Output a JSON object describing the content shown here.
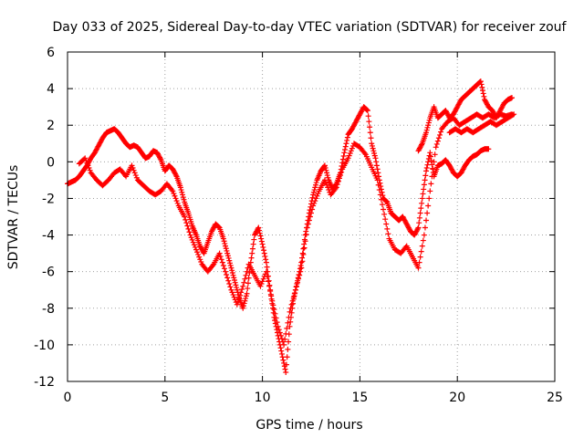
{
  "chart_data": {
    "type": "scatter",
    "title": "Day 033 of 2025, Sidereal Day-to-day VTEC variation (SDTVAR) for receiver zouf",
    "xlabel": "GPS time / hours",
    "ylabel": "SDTVAR / TECUs",
    "xlim": [
      0,
      25
    ],
    "ylim": [
      -12,
      6
    ],
    "xticks": [
      "0",
      "5",
      "10",
      "15",
      "20",
      "25"
    ],
    "yticks": [
      "6",
      "4",
      "2",
      "0",
      "-2",
      "-4",
      "-6",
      "-8",
      "-10",
      "-12"
    ],
    "grid": true,
    "marker": "+",
    "color": "#ff0000",
    "series": [
      {
        "values_desc": "primary",
        "points": [
          [
            0.0,
            -1.2
          ],
          [
            0.2,
            -1.1
          ],
          [
            0.4,
            -1.0
          ],
          [
            0.6,
            -0.8
          ],
          [
            0.8,
            -0.5
          ],
          [
            1.0,
            -0.2
          ],
          [
            1.2,
            0.2
          ],
          [
            1.4,
            0.5
          ],
          [
            1.6,
            0.9
          ],
          [
            1.8,
            1.3
          ],
          [
            2.0,
            1.6
          ],
          [
            2.2,
            1.7
          ],
          [
            2.4,
            1.8
          ],
          [
            2.6,
            1.6
          ],
          [
            2.8,
            1.3
          ],
          [
            3.0,
            1.0
          ],
          [
            3.2,
            0.8
          ],
          [
            3.4,
            0.9
          ],
          [
            3.6,
            0.8
          ],
          [
            3.8,
            0.5
          ],
          [
            4.0,
            0.2
          ],
          [
            4.2,
            0.3
          ],
          [
            4.4,
            0.6
          ],
          [
            4.6,
            0.5
          ],
          [
            4.8,
            0.1
          ],
          [
            5.0,
            -0.5
          ],
          [
            5.2,
            -0.2
          ],
          [
            5.4,
            -0.4
          ],
          [
            5.6,
            -0.8
          ],
          [
            5.8,
            -1.4
          ],
          [
            6.0,
            -2.2
          ],
          [
            6.2,
            -2.8
          ],
          [
            6.4,
            -3.5
          ],
          [
            6.6,
            -4.0
          ],
          [
            6.8,
            -4.6
          ],
          [
            7.0,
            -5.0
          ],
          [
            7.2,
            -4.4
          ],
          [
            7.4,
            -3.8
          ],
          [
            7.6,
            -3.4
          ],
          [
            7.8,
            -3.6
          ],
          [
            8.0,
            -4.2
          ],
          [
            8.2,
            -5.0
          ],
          [
            8.4,
            -5.8
          ],
          [
            8.6,
            -6.6
          ],
          [
            8.8,
            -7.4
          ],
          [
            9.0,
            -8.0
          ],
          [
            9.2,
            -7.2
          ],
          [
            9.4,
            -5.5
          ],
          [
            9.6,
            -4.0
          ],
          [
            9.8,
            -3.6
          ],
          [
            10.0,
            -4.5
          ],
          [
            10.2,
            -5.5
          ],
          [
            10.4,
            -7.0
          ],
          [
            10.6,
            -8.5
          ],
          [
            10.8,
            -9.5
          ],
          [
            11.0,
            -10.5
          ],
          [
            11.2,
            -11.5
          ],
          [
            11.4,
            -9.0
          ],
          [
            11.6,
            -7.5
          ],
          [
            11.8,
            -6.5
          ],
          [
            12.0,
            -5.5
          ],
          [
            12.2,
            -4.0
          ],
          [
            12.4,
            -2.8
          ],
          [
            12.6,
            -1.8
          ],
          [
            12.8,
            -1.0
          ],
          [
            13.0,
            -0.5
          ],
          [
            13.2,
            -0.2
          ],
          [
            13.4,
            -1.0
          ],
          [
            13.6,
            -1.5
          ],
          [
            13.8,
            -1.2
          ],
          [
            14.0,
            -0.6
          ],
          [
            14.2,
            0.5
          ],
          [
            14.4,
            1.5
          ],
          [
            14.6,
            1.8
          ],
          [
            14.8,
            2.2
          ],
          [
            15.0,
            2.6
          ],
          [
            15.2,
            3.0
          ],
          [
            15.4,
            2.8
          ],
          [
            15.6,
            1.0
          ],
          [
            15.8,
            0.2
          ],
          [
            16.0,
            -1.0
          ],
          [
            16.2,
            -2.0
          ],
          [
            16.4,
            -2.2
          ],
          [
            16.6,
            -2.8
          ],
          [
            16.8,
            -3.0
          ],
          [
            17.0,
            -3.2
          ],
          [
            17.2,
            -3.0
          ],
          [
            17.4,
            -3.4
          ],
          [
            17.6,
            -3.8
          ],
          [
            17.8,
            -4.0
          ],
          [
            18.0,
            -3.6
          ],
          [
            18.2,
            -2.0
          ],
          [
            18.4,
            -0.5
          ],
          [
            18.6,
            0.5
          ],
          [
            18.8,
            -0.8
          ],
          [
            19.0,
            -0.2
          ],
          [
            19.2,
            -0.1
          ],
          [
            19.4,
            0.1
          ],
          [
            19.6,
            -0.2
          ],
          [
            19.8,
            -0.6
          ],
          [
            20.0,
            -0.8
          ],
          [
            20.2,
            -0.6
          ],
          [
            20.4,
            -0.2
          ],
          [
            20.6,
            0.1
          ],
          [
            20.8,
            0.3
          ],
          [
            21.0,
            0.4
          ],
          [
            21.2,
            0.6
          ],
          [
            21.4,
            0.7
          ],
          [
            21.6,
            0.7
          ]
        ]
      },
      {
        "values_desc": "secondary",
        "points": [
          [
            0.6,
            -0.1
          ],
          [
            0.9,
            0.2
          ],
          [
            1.2,
            -0.6
          ],
          [
            1.5,
            -1.0
          ],
          [
            1.8,
            -1.3
          ],
          [
            2.1,
            -1.0
          ],
          [
            2.4,
            -0.6
          ],
          [
            2.7,
            -0.4
          ],
          [
            3.0,
            -0.8
          ],
          [
            3.3,
            -0.2
          ],
          [
            3.6,
            -1.0
          ],
          [
            3.9,
            -1.3
          ],
          [
            4.2,
            -1.6
          ],
          [
            4.5,
            -1.8
          ],
          [
            4.8,
            -1.6
          ],
          [
            5.1,
            -1.2
          ],
          [
            5.4,
            -1.6
          ],
          [
            5.7,
            -2.4
          ],
          [
            6.0,
            -3.0
          ],
          [
            6.3,
            -4.0
          ],
          [
            6.6,
            -4.8
          ],
          [
            6.9,
            -5.6
          ],
          [
            7.2,
            -6.0
          ],
          [
            7.5,
            -5.6
          ],
          [
            7.8,
            -5.0
          ],
          [
            8.1,
            -6.0
          ],
          [
            8.4,
            -7.0
          ],
          [
            8.7,
            -7.8
          ],
          [
            9.0,
            -6.8
          ],
          [
            9.3,
            -5.6
          ],
          [
            9.6,
            -6.2
          ],
          [
            9.9,
            -6.8
          ],
          [
            10.2,
            -6.0
          ],
          [
            10.5,
            -7.6
          ],
          [
            10.8,
            -9.0
          ],
          [
            11.1,
            -10.0
          ],
          [
            11.4,
            -8.2
          ],
          [
            11.7,
            -7.0
          ],
          [
            12.0,
            -5.8
          ],
          [
            12.3,
            -3.6
          ],
          [
            12.6,
            -2.4
          ],
          [
            12.9,
            -1.6
          ],
          [
            13.2,
            -1.0
          ],
          [
            13.5,
            -1.8
          ],
          [
            13.8,
            -1.4
          ],
          [
            14.1,
            -0.4
          ],
          [
            14.4,
            0.2
          ],
          [
            14.7,
            1.0
          ],
          [
            15.0,
            0.8
          ],
          [
            15.3,
            0.4
          ],
          [
            15.6,
            -0.3
          ],
          [
            15.9,
            -1.0
          ],
          [
            16.2,
            -2.6
          ],
          [
            16.5,
            -4.2
          ],
          [
            16.8,
            -4.8
          ],
          [
            17.1,
            -5.0
          ],
          [
            17.4,
            -4.6
          ],
          [
            17.7,
            -5.2
          ],
          [
            18.0,
            -5.8
          ],
          [
            18.3,
            -4.0
          ],
          [
            18.6,
            -1.6
          ],
          [
            18.9,
            0.8
          ],
          [
            19.2,
            1.8
          ],
          [
            19.5,
            2.2
          ],
          [
            19.8,
            2.4
          ],
          [
            20.1,
            2.0
          ],
          [
            20.4,
            2.2
          ],
          [
            20.7,
            2.4
          ],
          [
            21.0,
            2.6
          ],
          [
            21.3,
            2.4
          ],
          [
            21.6,
            2.6
          ],
          [
            21.9,
            2.4
          ],
          [
            22.2,
            2.6
          ],
          [
            22.5,
            2.5
          ],
          [
            22.8,
            2.6
          ]
        ]
      },
      {
        "values_desc": "tertiary",
        "points": [
          [
            18.0,
            0.6
          ],
          [
            18.2,
            1.0
          ],
          [
            18.4,
            1.6
          ],
          [
            18.6,
            2.4
          ],
          [
            18.8,
            3.0
          ],
          [
            19.0,
            2.4
          ],
          [
            19.2,
            2.6
          ],
          [
            19.4,
            2.8
          ],
          [
            19.6,
            2.4
          ],
          [
            19.8,
            2.6
          ],
          [
            20.0,
            3.0
          ],
          [
            20.2,
            3.4
          ],
          [
            20.4,
            3.6
          ],
          [
            20.6,
            3.8
          ],
          [
            20.8,
            4.0
          ],
          [
            21.0,
            4.2
          ],
          [
            21.2,
            4.4
          ],
          [
            21.4,
            3.4
          ],
          [
            21.6,
            3.0
          ],
          [
            21.8,
            2.8
          ],
          [
            22.0,
            2.4
          ],
          [
            22.2,
            2.8
          ],
          [
            22.4,
            3.2
          ],
          [
            22.6,
            3.4
          ],
          [
            22.8,
            3.5
          ],
          [
            19.6,
            1.6
          ],
          [
            19.9,
            1.8
          ],
          [
            20.2,
            1.6
          ],
          [
            20.5,
            1.8
          ],
          [
            20.8,
            1.6
          ],
          [
            21.1,
            1.8
          ],
          [
            21.4,
            2.0
          ],
          [
            21.7,
            2.2
          ],
          [
            22.0,
            2.0
          ],
          [
            22.3,
            2.2
          ],
          [
            22.6,
            2.4
          ],
          [
            22.9,
            2.6
          ]
        ]
      }
    ]
  }
}
